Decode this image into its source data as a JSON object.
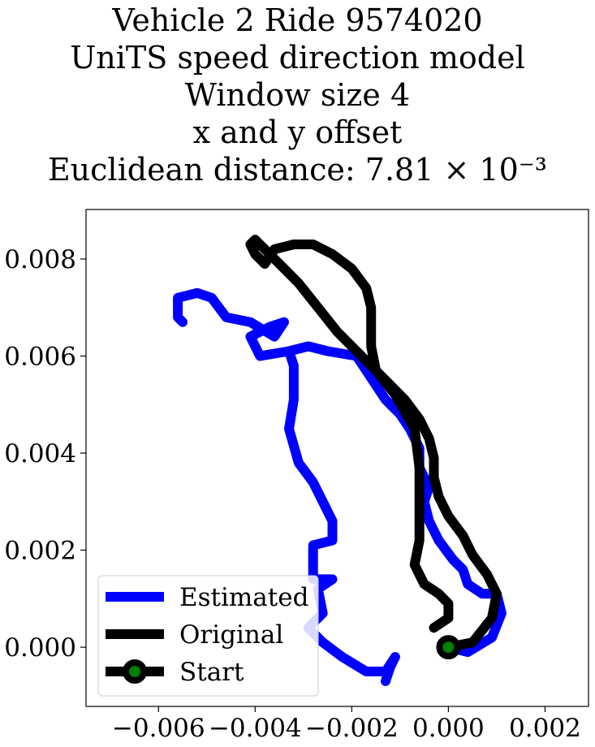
{
  "chart_data": {
    "type": "line",
    "title_lines": [
      "Vehicle 2 Ride 9574020",
      "UniTS speed direction model",
      "Window size 4",
      "x and y offset",
      "Euclidean distance: 7.81 × 10⁻³"
    ],
    "xlabel": "",
    "ylabel": "",
    "xlim": [
      -0.0075,
      0.0029
    ],
    "ylim": [
      -0.00122,
      0.00902
    ],
    "x_ticks": [
      -0.006,
      -0.004,
      -0.002,
      0.0,
      0.002
    ],
    "x_tick_labels": [
      "−0.006",
      "−0.004",
      "−0.002",
      "0.000",
      "0.002"
    ],
    "y_ticks": [
      0.0,
      0.002,
      0.004,
      0.006,
      0.008
    ],
    "y_tick_labels": [
      "0.000",
      "0.002",
      "0.004",
      "0.006",
      "0.008"
    ],
    "grid": false,
    "legend": {
      "placement": "lower-left",
      "entries": [
        "Estimated",
        "Original",
        "Start"
      ]
    },
    "series": [
      {
        "name": "Estimated",
        "color": "#0000ff",
        "points": [
          [
            0.0,
            0.0
          ],
          [
            0.0004,
            -0.0001
          ],
          [
            0.0009,
            0.0002
          ],
          [
            0.0011,
            0.0007
          ],
          [
            0.001,
            0.0011
          ],
          [
            0.0007,
            0.0011
          ],
          [
            0.0004,
            0.0013
          ],
          [
            0.0003,
            0.0016
          ],
          [
            0.0001,
            0.0018
          ],
          [
            -0.0002,
            0.0022
          ],
          [
            -0.0004,
            0.0026
          ],
          [
            -0.0005,
            0.003
          ],
          [
            -0.0004,
            0.0033
          ],
          [
            -0.0006,
            0.0037
          ],
          [
            -0.0006,
            0.0041
          ],
          [
            -0.0008,
            0.0045
          ],
          [
            -0.001,
            0.0048
          ],
          [
            -0.0013,
            0.0051
          ],
          [
            -0.0015,
            0.0054
          ],
          [
            -0.0017,
            0.0057
          ],
          [
            -0.0019,
            0.006
          ],
          [
            -0.0025,
            0.0061
          ],
          [
            -0.0029,
            0.0062
          ],
          [
            -0.0033,
            0.0061
          ],
          [
            -0.0032,
            0.0058
          ],
          [
            -0.0032,
            0.0051
          ],
          [
            -0.0033,
            0.0045
          ],
          [
            -0.0031,
            0.0038
          ],
          [
            -0.0028,
            0.0034
          ],
          [
            -0.0026,
            0.003
          ],
          [
            -0.0024,
            0.0026
          ],
          [
            -0.0024,
            0.0022
          ],
          [
            -0.0028,
            0.0021
          ],
          [
            -0.0028,
            0.0014
          ],
          [
            -0.0024,
            0.0014
          ],
          [
            -0.0027,
            0.0012
          ],
          [
            -0.0026,
            0.0007
          ],
          [
            -0.0029,
            0.0004
          ],
          [
            -0.0026,
            0.0001
          ],
          [
            -0.0022,
            -0.0002
          ],
          [
            -0.0017,
            -0.0005
          ],
          [
            -0.0013,
            -0.0005
          ],
          [
            -0.0011,
            -0.0002
          ],
          [
            -0.0012,
            -0.0004
          ],
          [
            -0.0013,
            -0.0007
          ]
        ],
        "branch_points": [
          [
            -0.0033,
            0.0061
          ],
          [
            -0.0039,
            0.006
          ],
          [
            -0.0041,
            0.0064
          ],
          [
            -0.0037,
            0.0066
          ],
          [
            -0.0034,
            0.0067
          ],
          [
            -0.0036,
            0.0064
          ],
          [
            -0.0041,
            0.0067
          ],
          [
            -0.0046,
            0.0068
          ],
          [
            -0.0049,
            0.0072
          ],
          [
            -0.0052,
            0.0073
          ],
          [
            -0.0056,
            0.0072
          ],
          [
            -0.0056,
            0.0068
          ],
          [
            -0.0055,
            0.0067
          ]
        ]
      },
      {
        "name": "Original",
        "color": "#000000",
        "points": [
          [
            0.0,
            0.0
          ],
          [
            0.0005,
            0.0001
          ],
          [
            0.0009,
            0.0006
          ],
          [
            0.001,
            0.0011
          ],
          [
            0.0008,
            0.0015
          ],
          [
            0.0005,
            0.0019
          ],
          [
            0.0003,
            0.0023
          ],
          [
            0.0,
            0.0027
          ],
          [
            -0.0002,
            0.0031
          ],
          [
            -0.0003,
            0.0035
          ],
          [
            -0.0003,
            0.0039
          ],
          [
            -0.0004,
            0.0043
          ],
          [
            -0.0006,
            0.0047
          ],
          [
            -0.0009,
            0.0051
          ],
          [
            -0.0012,
            0.0054
          ],
          [
            -0.0015,
            0.0057
          ],
          [
            -0.0019,
            0.0061
          ],
          [
            -0.0023,
            0.0065
          ],
          [
            -0.0027,
            0.007
          ],
          [
            -0.0031,
            0.0075
          ],
          [
            -0.0035,
            0.0079
          ],
          [
            -0.0038,
            0.0082
          ],
          [
            -0.004,
            0.0084
          ],
          [
            -0.0041,
            0.0083
          ],
          [
            -0.004,
            0.0081
          ],
          [
            -0.0038,
            0.0079
          ],
          [
            -0.0039,
            0.008
          ]
        ],
        "branch_points": [
          [
            -0.0038,
            0.0079
          ],
          [
            -0.0036,
            0.0082
          ],
          [
            -0.0032,
            0.0083
          ],
          [
            -0.0028,
            0.0083
          ],
          [
            -0.0024,
            0.0081
          ],
          [
            -0.002,
            0.0078
          ],
          [
            -0.0017,
            0.0074
          ],
          [
            -0.0016,
            0.007
          ],
          [
            -0.0016,
            0.0062
          ],
          [
            -0.0015,
            0.0057
          ],
          [
            -0.0011,
            0.0052
          ],
          [
            -0.0007,
            0.0045
          ],
          [
            -0.0006,
            0.0037
          ],
          [
            -0.0006,
            0.003
          ],
          [
            -0.0006,
            0.0022
          ],
          [
            -0.0007,
            0.0017
          ],
          [
            -0.0005,
            0.0013
          ],
          [
            -0.0002,
            0.0011
          ],
          [
            0.0,
            0.0009
          ],
          [
            0.0,
            0.0006
          ],
          [
            -0.0003,
            0.0004
          ]
        ]
      }
    ],
    "start_point": {
      "name": "Start",
      "x": 0.0,
      "y": 0.0,
      "marker_color": "#008000",
      "edge_color": "#000000"
    }
  }
}
